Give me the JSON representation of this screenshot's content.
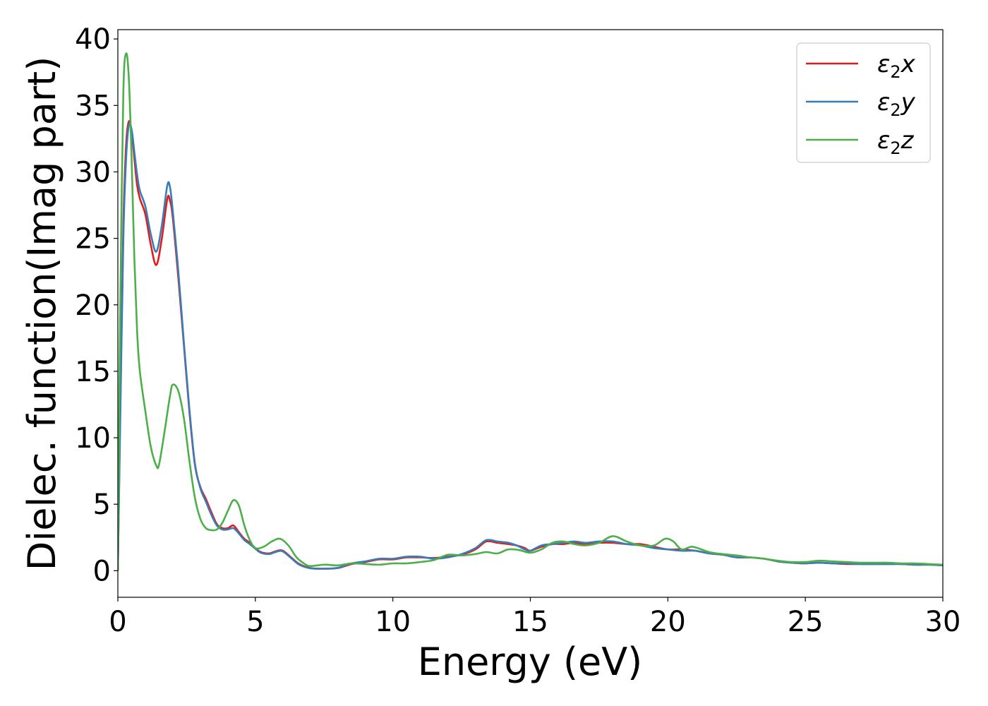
{
  "chart_data": {
    "type": "line",
    "title": "",
    "xlabel": "Energy (eV)",
    "ylabel": "Dielec. function(Imag part)",
    "xlim": [
      0,
      30
    ],
    "ylim": [
      -2,
      40.7
    ],
    "xticks": [
      0,
      5,
      10,
      15,
      20,
      25,
      30
    ],
    "yticks": [
      0,
      5,
      10,
      15,
      20,
      25,
      30,
      35,
      40
    ],
    "grid": false,
    "legend_position": "top-right",
    "series": [
      {
        "name": "ε₂x",
        "symbol": "ε",
        "subscript": "2",
        "suffix": "x",
        "color": "#e41a1c",
        "points": [
          [
            0,
            0
          ],
          [
            0.1,
            14
          ],
          [
            0.2,
            26
          ],
          [
            0.3,
            32
          ],
          [
            0.4,
            33.8
          ],
          [
            0.5,
            33
          ],
          [
            0.6,
            31
          ],
          [
            0.7,
            29
          ],
          [
            0.8,
            28
          ],
          [
            1.0,
            26.8
          ],
          [
            1.2,
            24.5
          ],
          [
            1.4,
            23
          ],
          [
            1.6,
            25
          ],
          [
            1.8,
            28
          ],
          [
            1.9,
            27.8
          ],
          [
            2.0,
            26.5
          ],
          [
            2.2,
            22
          ],
          [
            2.4,
            17
          ],
          [
            2.6,
            12
          ],
          [
            2.8,
            8
          ],
          [
            3.0,
            6.3
          ],
          [
            3.2,
            5.4
          ],
          [
            3.4,
            4.4
          ],
          [
            3.6,
            3.5
          ],
          [
            3.8,
            3.2
          ],
          [
            4.0,
            3.2
          ],
          [
            4.2,
            3.4
          ],
          [
            4.4,
            2.9
          ],
          [
            4.6,
            2.4
          ],
          [
            4.8,
            2.1
          ],
          [
            5.0,
            1.7
          ],
          [
            5.2,
            1.4
          ],
          [
            5.5,
            1.3
          ],
          [
            5.8,
            1.5
          ],
          [
            6.0,
            1.5
          ],
          [
            6.3,
            1.0
          ],
          [
            6.6,
            0.5
          ],
          [
            7.0,
            0.2
          ],
          [
            7.5,
            0.15
          ],
          [
            8.0,
            0.2
          ],
          [
            8.5,
            0.5
          ],
          [
            9.0,
            0.65
          ],
          [
            9.5,
            0.85
          ],
          [
            10.0,
            0.85
          ],
          [
            10.5,
            1.0
          ],
          [
            11.0,
            1.0
          ],
          [
            11.5,
            0.95
          ],
          [
            12.0,
            1.05
          ],
          [
            12.5,
            1.2
          ],
          [
            13.0,
            1.6
          ],
          [
            13.4,
            2.2
          ],
          [
            13.8,
            2.1
          ],
          [
            14.2,
            2.0
          ],
          [
            14.5,
            1.9
          ],
          [
            14.8,
            1.7
          ],
          [
            15.0,
            1.5
          ],
          [
            15.4,
            1.8
          ],
          [
            15.8,
            2.0
          ],
          [
            16.2,
            2.0
          ],
          [
            16.6,
            2.1
          ],
          [
            17.0,
            2.0
          ],
          [
            17.5,
            2.1
          ],
          [
            18.0,
            2.1
          ],
          [
            18.5,
            2.0
          ],
          [
            19.0,
            2.0
          ],
          [
            19.5,
            1.8
          ],
          [
            20.0,
            1.6
          ],
          [
            20.5,
            1.6
          ],
          [
            21.0,
            1.5
          ],
          [
            21.5,
            1.3
          ],
          [
            22.0,
            1.2
          ],
          [
            22.5,
            1.0
          ],
          [
            23.0,
            1.0
          ],
          [
            23.5,
            0.9
          ],
          [
            24.0,
            0.7
          ],
          [
            24.5,
            0.6
          ],
          [
            25.0,
            0.55
          ],
          [
            25.5,
            0.6
          ],
          [
            26.0,
            0.55
          ],
          [
            26.5,
            0.5
          ],
          [
            27.0,
            0.5
          ],
          [
            27.5,
            0.5
          ],
          [
            28.0,
            0.5
          ],
          [
            28.5,
            0.5
          ],
          [
            29.0,
            0.45
          ],
          [
            29.5,
            0.45
          ],
          [
            30.0,
            0.4
          ]
        ]
      },
      {
        "name": "ε₂y",
        "symbol": "ε",
        "subscript": "2",
        "suffix": "y",
        "color": "#377eb8",
        "points": [
          [
            0,
            0
          ],
          [
            0.1,
            13
          ],
          [
            0.2,
            25
          ],
          [
            0.3,
            31
          ],
          [
            0.4,
            33.5
          ],
          [
            0.5,
            33.2
          ],
          [
            0.6,
            31.5
          ],
          [
            0.7,
            29.8
          ],
          [
            0.8,
            28.6
          ],
          [
            1.0,
            27.4
          ],
          [
            1.2,
            25.3
          ],
          [
            1.4,
            24
          ],
          [
            1.6,
            26
          ],
          [
            1.8,
            29
          ],
          [
            1.9,
            28.8
          ],
          [
            2.0,
            27
          ],
          [
            2.2,
            22.5
          ],
          [
            2.4,
            17.2
          ],
          [
            2.6,
            12.2
          ],
          [
            2.8,
            8.1
          ],
          [
            3.0,
            6.2
          ],
          [
            3.2,
            5.2
          ],
          [
            3.4,
            4.2
          ],
          [
            3.6,
            3.4
          ],
          [
            3.8,
            3.1
          ],
          [
            4.0,
            3.1
          ],
          [
            4.2,
            3.2
          ],
          [
            4.4,
            2.8
          ],
          [
            4.6,
            2.3
          ],
          [
            4.8,
            2.0
          ],
          [
            5.0,
            1.65
          ],
          [
            5.2,
            1.35
          ],
          [
            5.5,
            1.25
          ],
          [
            5.8,
            1.45
          ],
          [
            6.0,
            1.45
          ],
          [
            6.3,
            0.95
          ],
          [
            6.6,
            0.45
          ],
          [
            7.0,
            0.18
          ],
          [
            7.5,
            0.15
          ],
          [
            8.0,
            0.22
          ],
          [
            8.5,
            0.55
          ],
          [
            9.0,
            0.7
          ],
          [
            9.5,
            0.9
          ],
          [
            10.0,
            0.9
          ],
          [
            10.5,
            1.05
          ],
          [
            11.0,
            1.05
          ],
          [
            11.5,
            0.9
          ],
          [
            12.0,
            1.0
          ],
          [
            12.5,
            1.25
          ],
          [
            13.0,
            1.7
          ],
          [
            13.4,
            2.3
          ],
          [
            13.8,
            2.2
          ],
          [
            14.2,
            2.1
          ],
          [
            14.5,
            1.9
          ],
          [
            14.8,
            1.6
          ],
          [
            15.0,
            1.5
          ],
          [
            15.4,
            1.9
          ],
          [
            15.8,
            2.0
          ],
          [
            16.2,
            2.1
          ],
          [
            16.6,
            2.2
          ],
          [
            17.0,
            2.1
          ],
          [
            17.5,
            2.2
          ],
          [
            18.0,
            2.2
          ],
          [
            18.5,
            2.0
          ],
          [
            19.0,
            1.9
          ],
          [
            19.5,
            1.7
          ],
          [
            20.0,
            1.6
          ],
          [
            20.5,
            1.5
          ],
          [
            21.0,
            1.5
          ],
          [
            21.5,
            1.3
          ],
          [
            22.0,
            1.2
          ],
          [
            22.5,
            1.0
          ],
          [
            23.0,
            1.0
          ],
          [
            23.5,
            0.9
          ],
          [
            24.0,
            0.7
          ],
          [
            24.5,
            0.6
          ],
          [
            25.0,
            0.55
          ],
          [
            25.5,
            0.6
          ],
          [
            26.0,
            0.55
          ],
          [
            26.5,
            0.55
          ],
          [
            27.0,
            0.5
          ],
          [
            27.5,
            0.5
          ],
          [
            28.0,
            0.5
          ],
          [
            28.5,
            0.5
          ],
          [
            29.0,
            0.45
          ],
          [
            29.5,
            0.45
          ],
          [
            30.0,
            0.4
          ]
        ]
      },
      {
        "name": "ε₂z",
        "symbol": "ε",
        "subscript": "2",
        "suffix": "z",
        "color": "#4daf4a",
        "points": [
          [
            0,
            0
          ],
          [
            0.05,
            12
          ],
          [
            0.1,
            22
          ],
          [
            0.2,
            36
          ],
          [
            0.3,
            38.9
          ],
          [
            0.4,
            37
          ],
          [
            0.5,
            31
          ],
          [
            0.6,
            23.5
          ],
          [
            0.7,
            18
          ],
          [
            0.8,
            15
          ],
          [
            1.0,
            12
          ],
          [
            1.2,
            9.3
          ],
          [
            1.4,
            7.9
          ],
          [
            1.5,
            8
          ],
          [
            1.7,
            10.5
          ],
          [
            1.9,
            13.2
          ],
          [
            2.0,
            14
          ],
          [
            2.2,
            13.5
          ],
          [
            2.4,
            11.5
          ],
          [
            2.6,
            8.3
          ],
          [
            2.8,
            5.5
          ],
          [
            3.0,
            3.9
          ],
          [
            3.2,
            3.2
          ],
          [
            3.4,
            3.05
          ],
          [
            3.6,
            3.1
          ],
          [
            3.8,
            3.6
          ],
          [
            4.0,
            4.5
          ],
          [
            4.2,
            5.3
          ],
          [
            4.4,
            4.9
          ],
          [
            4.6,
            3.4
          ],
          [
            4.8,
            2.3
          ],
          [
            5.0,
            1.7
          ],
          [
            5.3,
            1.8
          ],
          [
            5.6,
            2.2
          ],
          [
            5.9,
            2.4
          ],
          [
            6.2,
            1.9
          ],
          [
            6.5,
            1.0
          ],
          [
            6.8,
            0.5
          ],
          [
            7.0,
            0.35
          ],
          [
            7.5,
            0.45
          ],
          [
            8.0,
            0.4
          ],
          [
            8.5,
            0.55
          ],
          [
            9.0,
            0.5
          ],
          [
            9.5,
            0.45
          ],
          [
            10.0,
            0.55
          ],
          [
            10.5,
            0.55
          ],
          [
            11.0,
            0.65
          ],
          [
            11.5,
            0.8
          ],
          [
            12.0,
            1.2
          ],
          [
            12.5,
            1.15
          ],
          [
            13.0,
            1.25
          ],
          [
            13.4,
            1.4
          ],
          [
            13.8,
            1.3
          ],
          [
            14.2,
            1.6
          ],
          [
            14.6,
            1.55
          ],
          [
            15.0,
            1.35
          ],
          [
            15.4,
            1.6
          ],
          [
            15.8,
            2.1
          ],
          [
            16.2,
            2.2
          ],
          [
            16.6,
            2.0
          ],
          [
            17.0,
            1.9
          ],
          [
            17.5,
            2.1
          ],
          [
            18.0,
            2.6
          ],
          [
            18.5,
            2.2
          ],
          [
            19.0,
            1.9
          ],
          [
            19.5,
            1.9
          ],
          [
            19.9,
            2.4
          ],
          [
            20.2,
            2.2
          ],
          [
            20.5,
            1.6
          ],
          [
            20.9,
            1.8
          ],
          [
            21.5,
            1.4
          ],
          [
            22.0,
            1.25
          ],
          [
            22.5,
            1.15
          ],
          [
            23.0,
            1.0
          ],
          [
            23.5,
            0.9
          ],
          [
            24.0,
            0.75
          ],
          [
            24.5,
            0.65
          ],
          [
            25.0,
            0.65
          ],
          [
            25.5,
            0.75
          ],
          [
            26.0,
            0.7
          ],
          [
            26.5,
            0.65
          ],
          [
            27.0,
            0.6
          ],
          [
            27.5,
            0.6
          ],
          [
            28.0,
            0.6
          ],
          [
            28.5,
            0.55
          ],
          [
            29.0,
            0.55
          ],
          [
            29.5,
            0.5
          ],
          [
            30.0,
            0.45
          ]
        ]
      }
    ]
  }
}
